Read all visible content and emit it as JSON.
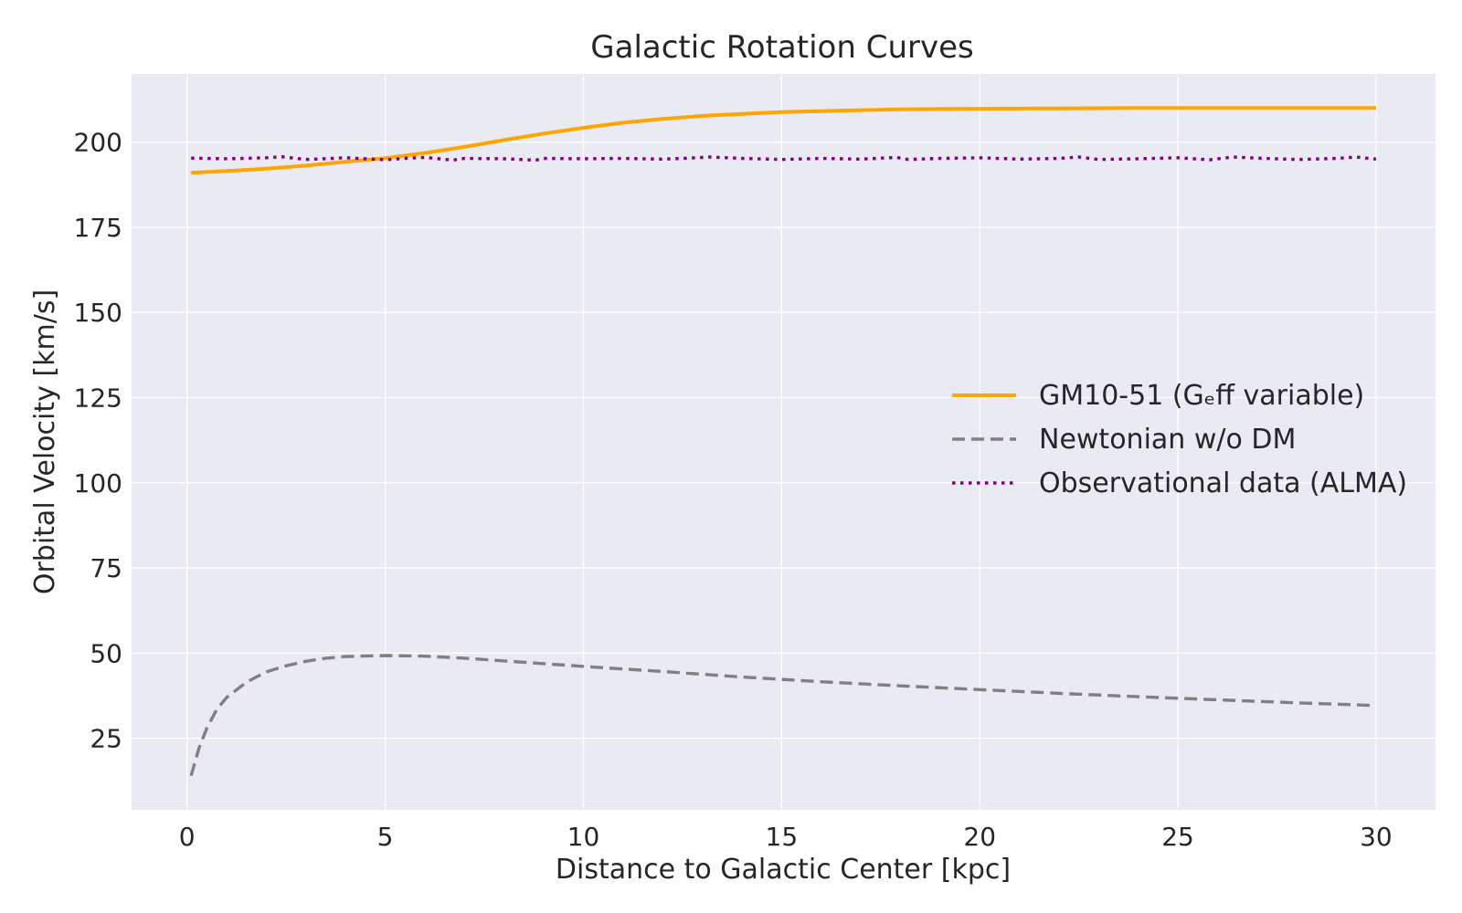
{
  "chart_data": {
    "type": "line",
    "title": "Galactic Rotation Curves",
    "xlabel": "Distance to Galactic Center [kpc]",
    "ylabel": "Orbital Velocity [km/s]",
    "xlim": [
      -1.4,
      31.5
    ],
    "ylim": [
      4,
      220
    ],
    "xticks": [
      0,
      5,
      10,
      15,
      20,
      25,
      30
    ],
    "yticks": [
      25,
      50,
      75,
      100,
      125,
      150,
      175,
      200
    ],
    "grid": true,
    "legend_position": "center-right",
    "background_color": "#eaeaf2",
    "series": [
      {
        "name": "GM10-51 (Gₑff variable)",
        "color": "#ffa500",
        "style": "solid",
        "x": [
          0.1,
          1,
          2,
          3,
          4,
          5,
          6,
          7,
          8,
          9,
          10,
          11,
          12,
          13,
          14,
          15,
          16,
          17,
          18,
          19,
          20,
          22,
          24,
          26,
          28,
          30
        ],
        "y": [
          191,
          191.5,
          192.2,
          193.1,
          194.2,
          195.3,
          196.8,
          198.6,
          200.6,
          202.5,
          204.2,
          205.7,
          206.8,
          207.7,
          208.3,
          208.8,
          209.1,
          209.4,
          209.6,
          209.7,
          209.8,
          209.9,
          210,
          210,
          210,
          210
        ]
      },
      {
        "name": "Newtonian w/o DM",
        "color": "#808080",
        "style": "dashed",
        "x": [
          0.1,
          0.3,
          0.5,
          0.75,
          1,
          1.5,
          2,
          2.5,
          3,
          3.5,
          4,
          5,
          6,
          7,
          8,
          9,
          10,
          12,
          14,
          16,
          18,
          20,
          22,
          24,
          26,
          28,
          30
        ],
        "y": [
          14,
          22,
          28,
          33.5,
          37,
          41.5,
          44.5,
          46.3,
          47.6,
          48.5,
          49,
          49.3,
          49.1,
          48.5,
          47.7,
          46.9,
          46.1,
          44.6,
          43,
          41.6,
          40.4,
          39.3,
          38.2,
          37.2,
          36.3,
          35.4,
          34.6
        ]
      },
      {
        "name": "Observational data (ALMA)",
        "color": "#800080",
        "style": "dotted",
        "x": [
          0.1,
          1,
          2,
          2.4,
          3,
          4,
          5,
          5.5,
          6,
          6.7,
          7,
          8,
          8.8,
          9,
          10,
          11,
          12,
          12.5,
          13.2,
          14,
          15,
          16,
          17,
          17.9,
          18.2,
          19,
          20,
          21,
          22,
          22.5,
          23,
          24,
          25,
          25.8,
          26.4,
          27,
          28,
          29,
          29.5,
          30
        ],
        "y": [
          195.3,
          195.1,
          195.4,
          195.7,
          194.9,
          195.4,
          194.8,
          195.2,
          195.5,
          194.7,
          195.2,
          195.1,
          194.7,
          195.2,
          195.1,
          195.2,
          195,
          195.2,
          195.6,
          195.2,
          194.9,
          195.2,
          195,
          195.5,
          194.9,
          195.2,
          195.4,
          195,
          195.2,
          195.6,
          194.9,
          195.1,
          195.4,
          194.8,
          195.6,
          195.3,
          194.9,
          195.2,
          195.6,
          195
        ]
      }
    ]
  }
}
